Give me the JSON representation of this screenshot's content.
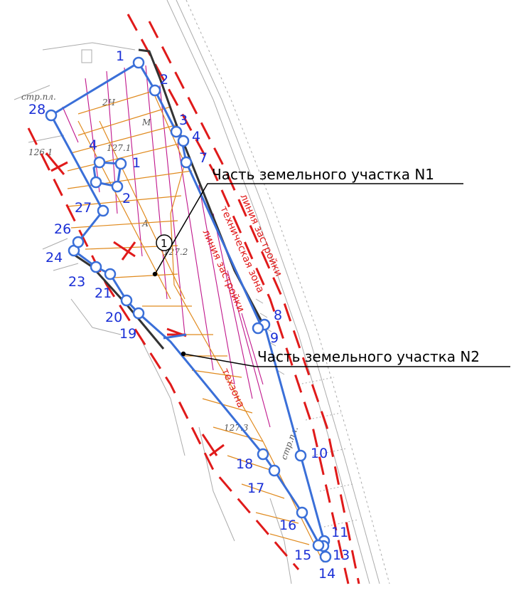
{
  "callouts": {
    "part1": "Часть земельного участка N1",
    "part2": "Часть земельного участка N2"
  },
  "zone_labels": {
    "building_line": "линия застройки",
    "technical_zone": "техническая зона",
    "techzone": "техзона"
  },
  "marker": "1",
  "topo_text": {
    "str_pl": "стр.пл.",
    "elev_1261": "126.1",
    "elev_1271": "127.1",
    "elev_1273": "127.3",
    "elev_1272": "127.2",
    "code_2n": "2Н",
    "code_a": "А",
    "code_m": "М",
    "str_pl_2": "стр.пл."
  },
  "points": [
    {
      "id": "p1",
      "label": "1"
    },
    {
      "id": "p2",
      "label": "2"
    },
    {
      "id": "p3",
      "label": "3"
    },
    {
      "id": "p4",
      "label": "4"
    },
    {
      "id": "p7",
      "label": "7"
    },
    {
      "id": "p8",
      "label": "8"
    },
    {
      "id": "p9",
      "label": "9"
    },
    {
      "id": "p10",
      "label": "10"
    },
    {
      "id": "p11",
      "label": "11"
    },
    {
      "id": "p13",
      "label": "13"
    },
    {
      "id": "p14",
      "label": "14"
    },
    {
      "id": "p15",
      "label": "15"
    },
    {
      "id": "p16",
      "label": "16"
    },
    {
      "id": "p17",
      "label": "17"
    },
    {
      "id": "p18",
      "label": "18"
    },
    {
      "id": "p19",
      "label": "19"
    },
    {
      "id": "p20",
      "label": "20"
    },
    {
      "id": "p21",
      "label": "21"
    },
    {
      "id": "p23",
      "label": "23"
    },
    {
      "id": "p24",
      "label": "24"
    },
    {
      "id": "p26",
      "label": "26"
    },
    {
      "id": "p27",
      "label": "27"
    },
    {
      "id": "p28",
      "label": "28"
    },
    {
      "id": "h1",
      "label": "1"
    },
    {
      "id": "h2",
      "label": "2"
    },
    {
      "id": "h4",
      "label": "4"
    }
  ],
  "colors": {
    "boundary": "#3a6fd8",
    "vertex": "#3a6fd8",
    "hatch_magenta": "#c0168c",
    "hatch_orange": "#e08a1e",
    "dash_red": "#e01a1a",
    "label_blue": "#1a2fd6"
  }
}
